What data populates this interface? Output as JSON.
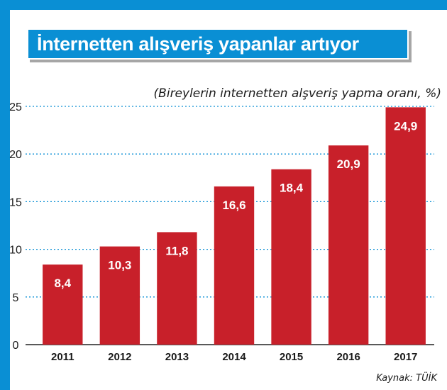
{
  "header": {
    "title": "İnternetten alışveriş yapanlar artıyor"
  },
  "source_note": "Kaynak: TÜİK",
  "colors": {
    "frame": "#0a8fd4",
    "bar": "#c8202a",
    "grid": "#0a8fd4",
    "label": "#ffffff"
  },
  "chart_data": {
    "type": "bar",
    "title": "İnternetten alışveriş yapanlar artıyor",
    "subtitle": "(Bireylerin internetten alşveriş yapma oranı, %)",
    "xlabel": "",
    "ylabel": "",
    "categories": [
      "2011",
      "2012",
      "2013",
      "2014",
      "2015",
      "2016",
      "2017"
    ],
    "values": [
      8.4,
      10.3,
      11.8,
      16.6,
      18.4,
      20.9,
      24.9
    ],
    "value_labels": [
      "8,4",
      "10,3",
      "11,8",
      "16,6",
      "18,4",
      "20,9",
      "24,9"
    ],
    "ylim": [
      0,
      25
    ],
    "yticks": [
      0,
      5,
      10,
      15,
      20,
      25
    ],
    "grid": true,
    "legend": "none"
  }
}
